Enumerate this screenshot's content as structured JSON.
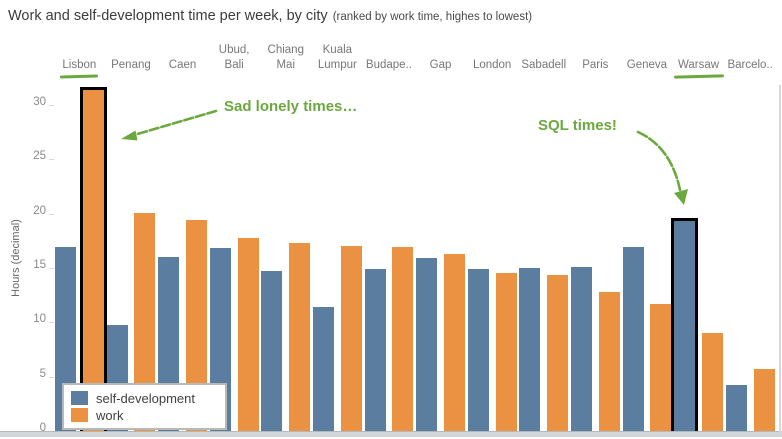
{
  "header": {
    "title": "Work and self-development time per week, by city",
    "subtitle": "(ranked by work time, highes to lowest)"
  },
  "chart_data": {
    "type": "bar",
    "title": "Work and self-development time per week, by city",
    "subtitle": "(ranked by work time, highes to lowest)",
    "ylabel": "Hours (decimal)",
    "ylim": [
      0,
      32
    ],
    "yticks": [
      0,
      5,
      10,
      15,
      20,
      25,
      30
    ],
    "grid": false,
    "legend_position": "bottom-left",
    "categories": [
      "Lisbon",
      "Penang",
      "Caen",
      "Ubud,\nBali",
      "Chiang\nMai",
      "Kuala\nLumpur",
      "Budape..",
      "Gap",
      "London",
      "Sabadell",
      "Paris",
      "Geneva",
      "Warsaw",
      "Barcelo.."
    ],
    "series": [
      {
        "name": "self-development",
        "color": "#5A7DA0",
        "values": [
          16.9,
          9.8,
          16.0,
          16.8,
          14.7,
          11.4,
          14.9,
          15.9,
          14.9,
          15.0,
          15.1,
          16.9,
          19.3,
          4.2
        ]
      },
      {
        "name": "work",
        "color": "#EA9242",
        "values": [
          31.4,
          20.1,
          19.4,
          17.8,
          17.3,
          17.0,
          16.9,
          16.3,
          14.5,
          14.4,
          12.8,
          11.7,
          9.0,
          5.7
        ]
      }
    ],
    "highlights": [
      {
        "category": "Lisbon",
        "series": "work"
      },
      {
        "category": "Warsaw",
        "series": "self-development"
      }
    ],
    "underlined_categories": [
      "Lisbon",
      "Warsaw"
    ]
  },
  "annotations": [
    {
      "text": "Sad lonely times…",
      "target": "Lisbon work bar"
    },
    {
      "text": "SQL times!",
      "target": "Warsaw self-development bar"
    }
  ],
  "colors": {
    "blue": "#5A7DA0",
    "orange": "#EA9242",
    "annotation_green": "#6CA83F",
    "highlight_outline": "#000000",
    "axis_text": "#8A8A8A",
    "title_text": "#3C3C3C"
  }
}
